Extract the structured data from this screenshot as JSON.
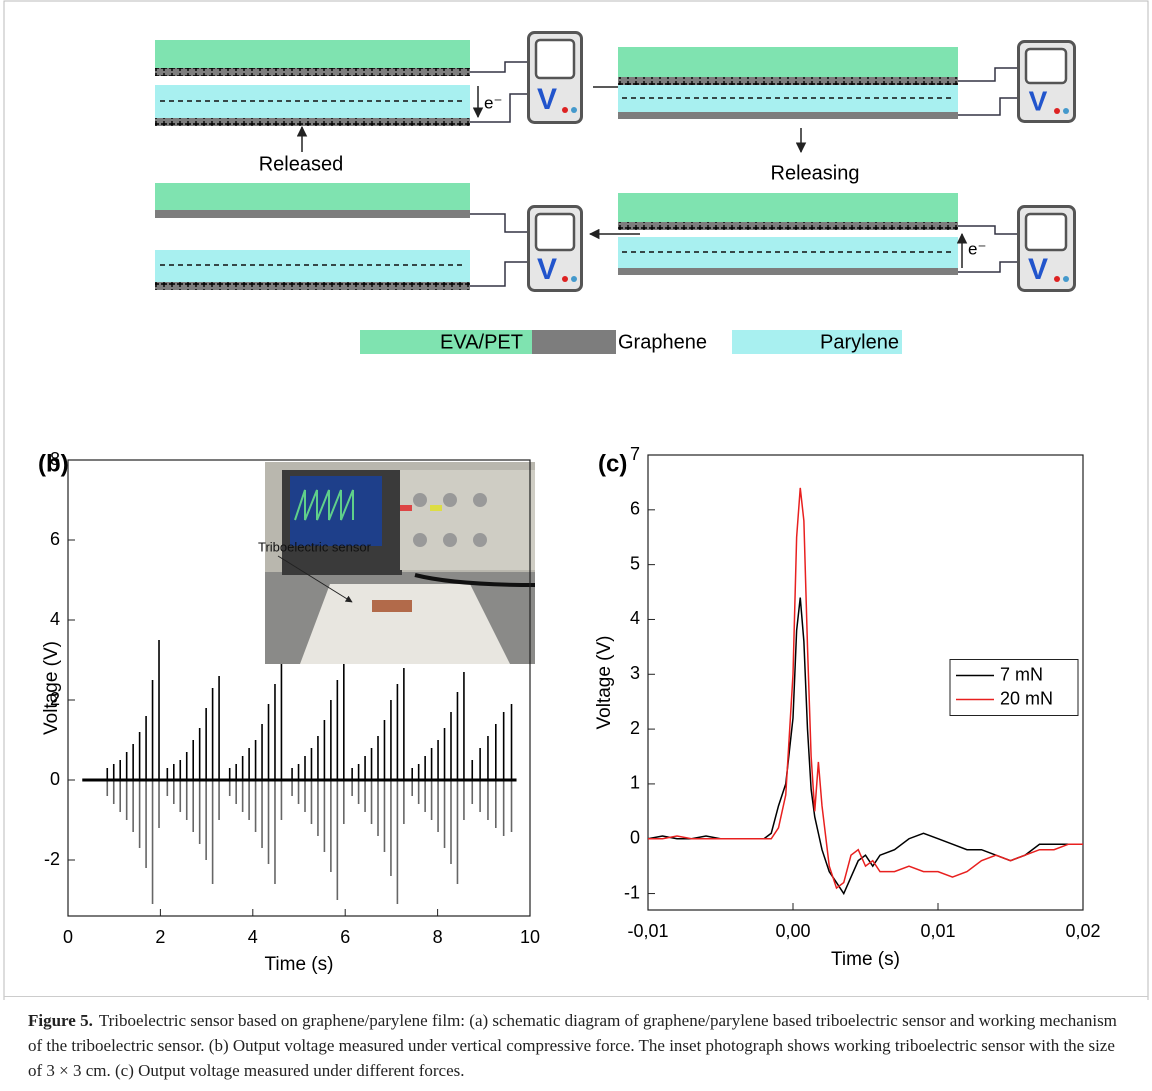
{
  "diagram": {
    "released": "Released",
    "releasing": "Releasing",
    "electron": "e⁻",
    "meter_label": "V",
    "legend": [
      "EVA/PET",
      "Graphene",
      "Parylene"
    ]
  },
  "chart_data": [
    {
      "type": "spike",
      "panel_label": "(b)",
      "x_label": "Time (s)",
      "y_label": "Voltage (V)",
      "annotation": "Triboelectric sensor",
      "xlim": [
        0,
        10
      ],
      "xticks": [
        0,
        2,
        4,
        6,
        8,
        10
      ],
      "ylim": [
        -3.4,
        8
      ],
      "yticks": [
        -2,
        0,
        2,
        4,
        6,
        8
      ],
      "x": [
        0.85,
        0.99,
        1.13,
        1.27,
        1.41,
        1.55,
        1.69,
        1.83,
        1.97,
        2.15,
        2.29,
        2.43,
        2.57,
        2.71,
        2.85,
        2.99,
        3.13,
        3.27,
        3.5,
        3.64,
        3.78,
        3.92,
        4.06,
        4.2,
        4.34,
        4.48,
        4.62,
        4.85,
        4.99,
        5.13,
        5.27,
        5.41,
        5.55,
        5.69,
        5.83,
        5.97,
        6.15,
        6.29,
        6.43,
        6.57,
        6.71,
        6.85,
        6.99,
        7.13,
        7.27,
        7.45,
        7.59,
        7.73,
        7.87,
        8.01,
        8.15,
        8.29,
        8.43,
        8.57,
        8.75,
        8.92,
        9.09,
        9.26,
        9.43,
        9.6
      ],
      "series": [
        {
          "color": "#000000",
          "values": [
            0.3,
            0.4,
            0.5,
            0.7,
            0.9,
            1.2,
            1.6,
            2.5,
            3.5,
            0.3,
            0.4,
            0.5,
            0.7,
            1.0,
            1.3,
            1.8,
            2.3,
            2.6,
            0.3,
            0.4,
            0.6,
            0.8,
            1.0,
            1.4,
            1.9,
            2.4,
            2.9,
            0.3,
            0.4,
            0.6,
            0.8,
            1.1,
            1.5,
            2.0,
            2.5,
            2.9,
            0.3,
            0.4,
            0.6,
            0.8,
            1.1,
            1.5,
            2.0,
            2.4,
            2.8,
            0.3,
            0.4,
            0.6,
            0.8,
            1.0,
            1.3,
            1.7,
            2.2,
            2.7,
            0.5,
            0.8,
            1.1,
            1.4,
            1.7,
            1.9
          ]
        },
        {
          "color": "#666666",
          "values": [
            -0.4,
            -0.6,
            -0.8,
            -1.0,
            -1.3,
            -1.7,
            -2.2,
            -3.1,
            -1.2,
            -0.4,
            -0.6,
            -0.8,
            -1.0,
            -1.3,
            -1.6,
            -2.0,
            -2.6,
            -1.0,
            -0.4,
            -0.6,
            -0.8,
            -1.0,
            -1.3,
            -1.7,
            -2.1,
            -2.6,
            -1.0,
            -0.4,
            -0.6,
            -0.8,
            -1.1,
            -1.4,
            -1.8,
            -2.3,
            -3.0,
            -1.1,
            -0.4,
            -0.6,
            -0.8,
            -1.1,
            -1.4,
            -1.8,
            -2.4,
            -3.1,
            -1.1,
            -0.4,
            -0.6,
            -0.8,
            -1.0,
            -1.3,
            -1.7,
            -2.1,
            -2.6,
            -1.0,
            -0.6,
            -0.8,
            -1.0,
            -1.2,
            -1.4,
            -1.3
          ]
        }
      ]
    },
    {
      "type": "line",
      "panel_label": "(c)",
      "x_label": "Time (s)",
      "y_label": "Voltage (V)",
      "legend": "right",
      "xlim": [
        -0.01,
        0.02
      ],
      "xticks": [
        {
          "value": -0.01,
          "label": "-0,01"
        },
        {
          "value": 0,
          "label": "0,00"
        },
        {
          "value": 0.01,
          "label": "0,01"
        },
        {
          "value": 0.02,
          "label": "0,02"
        }
      ],
      "ylim": [
        -1.3,
        7
      ],
      "yticks": [
        -1,
        0,
        1,
        2,
        3,
        4,
        5,
        6,
        7
      ],
      "x": [
        -0.01,
        -0.009,
        -0.008,
        -0.007,
        -0.006,
        -0.005,
        -0.004,
        -0.003,
        -0.002,
        -0.0015,
        -0.001,
        -0.0005,
        0,
        0.00025,
        0.0005,
        0.00075,
        0.001,
        0.00125,
        0.0015,
        0.00175,
        0.002,
        0.0025,
        0.003,
        0.0035,
        0.004,
        0.0045,
        0.005,
        0.0055,
        0.006,
        0.007,
        0.008,
        0.009,
        0.01,
        0.011,
        0.012,
        0.013,
        0.014,
        0.015,
        0.016,
        0.017,
        0.018,
        0.019,
        0.02
      ],
      "series": [
        {
          "name": "7 mN",
          "color": "#000000",
          "values": [
            0.0,
            0.05,
            0.0,
            0.0,
            0.05,
            0.0,
            0.0,
            0.0,
            0.0,
            0.1,
            0.6,
            1.0,
            2.2,
            3.8,
            4.4,
            3.6,
            2.0,
            0.9,
            0.4,
            0.1,
            -0.2,
            -0.6,
            -0.8,
            -1.0,
            -0.7,
            -0.4,
            -0.3,
            -0.5,
            -0.3,
            -0.2,
            0.0,
            0.1,
            0.0,
            -0.1,
            -0.2,
            -0.2,
            -0.3,
            -0.4,
            -0.3,
            -0.1,
            -0.1,
            -0.1,
            -0.1
          ]
        },
        {
          "name": "20 mN",
          "color": "#e8201f",
          "values": [
            0.0,
            0.0,
            0.05,
            0.0,
            0.0,
            0.0,
            0.0,
            0.0,
            0.0,
            0.0,
            0.2,
            0.8,
            3.0,
            5.5,
            6.4,
            5.8,
            3.5,
            1.5,
            0.5,
            1.4,
            0.6,
            -0.5,
            -0.9,
            -0.8,
            -0.3,
            -0.2,
            -0.5,
            -0.4,
            -0.6,
            -0.6,
            -0.5,
            -0.6,
            -0.6,
            -0.7,
            -0.6,
            -0.4,
            -0.3,
            -0.4,
            -0.3,
            -0.2,
            -0.2,
            -0.1,
            -0.1
          ]
        }
      ]
    }
  ],
  "caption": {
    "label": "Figure 5.",
    "text": "Triboelectric sensor based on graphene/parylene film: (a) schematic diagram of graphene/parylene based triboelectric sensor and working mechanism of the triboelectric sensor. (b) Output voltage measured under vertical compressive force. The inset photograph shows working triboelectric sensor with the size of 3 × 3 cm. (c) Output voltage measured under different forces."
  }
}
